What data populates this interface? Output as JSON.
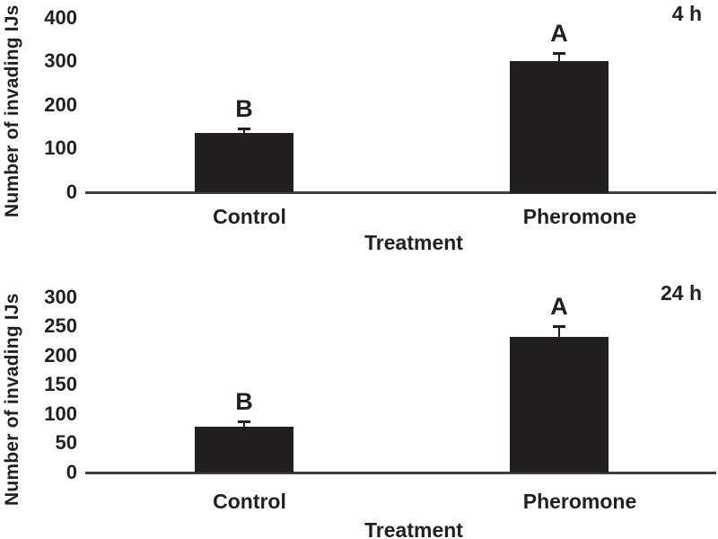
{
  "figure": {
    "background": "#ffffff",
    "ink_color": "#231f20",
    "bar_color": "#231f20",
    "axis_color": "#3f3f3f"
  },
  "chart_data": [
    {
      "type": "bar",
      "panel_label": "4 h",
      "title": "",
      "xlabel": "Treatment",
      "ylabel": "Number of invading IJs",
      "categories": [
        "Control",
        "Pheromone"
      ],
      "values": [
        135,
        300
      ],
      "error_plus": [
        13,
        22
      ],
      "sig_letters": [
        "B",
        "A"
      ],
      "ylim": [
        0,
        400
      ],
      "yticks": [
        0,
        100,
        200,
        300,
        400
      ],
      "grid": false,
      "legend": "none",
      "bar_color": "#231f20"
    },
    {
      "type": "bar",
      "panel_label": "24 h",
      "title": "",
      "xlabel": "Treatment",
      "ylabel": "Number of invading IJs",
      "categories": [
        "Control",
        "Pheromone"
      ],
      "values": [
        78,
        232
      ],
      "error_plus": [
        11,
        20
      ],
      "sig_letters": [
        "B",
        "A"
      ],
      "ylim": [
        0,
        300
      ],
      "yticks": [
        0,
        50,
        100,
        150,
        200,
        250,
        300
      ],
      "grid": false,
      "legend": "none",
      "bar_color": "#231f20"
    }
  ]
}
